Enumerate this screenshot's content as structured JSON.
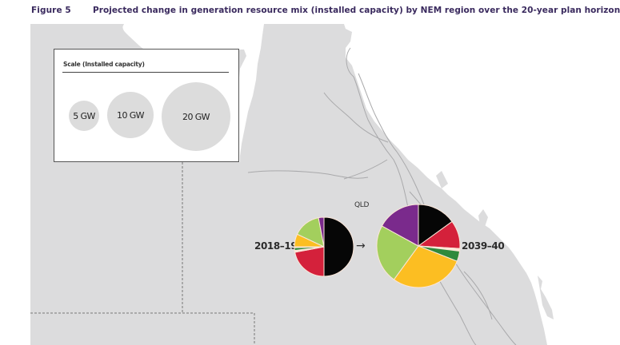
{
  "figure": {
    "number": "Figure 5",
    "title": "Projected change in generation resource mix (installed capacity) by NEM region over the 20-year plan horizon"
  },
  "scale_legend": {
    "title": "Scale (Installed capacity)",
    "circles": [
      {
        "label": "5 GW",
        "value_gw": 5
      },
      {
        "label": "10 GW",
        "value_gw": 10
      },
      {
        "label": "20 GW",
        "value_gw": 20
      }
    ]
  },
  "region": {
    "name": "QLD",
    "from_label": "2018–19",
    "to_label": "2039–40",
    "arrow": "→"
  },
  "colors": {
    "map_land": "#dcdcdd",
    "map_sea": "#ffffff",
    "black": "#060606",
    "red": "#d4213b",
    "dark_green": "#2f8a3c",
    "yellow": "#fcbe22",
    "light_green": "#a3cf5d",
    "purple": "#7a2a8c",
    "separator": "#fbe6d8"
  },
  "chart_data": [
    {
      "type": "pie",
      "title": "QLD 2018–19",
      "label": "2018–19",
      "slices": [
        {
          "color": "black",
          "share_pct": 50
        },
        {
          "color": "red",
          "share_pct": 22
        },
        {
          "color": "separator",
          "share_pct": 1
        },
        {
          "color": "dark_green",
          "share_pct": 1.5
        },
        {
          "color": "separator",
          "share_pct": 0.5
        },
        {
          "color": "yellow",
          "share_pct": 7
        },
        {
          "color": "light_green",
          "share_pct": 15
        },
        {
          "color": "purple",
          "share_pct": 3
        }
      ],
      "relative_size": "small"
    },
    {
      "type": "pie",
      "title": "QLD 2039–40",
      "label": "2039–40",
      "slices": [
        {
          "color": "black",
          "share_pct": 15
        },
        {
          "color": "red",
          "share_pct": 11
        },
        {
          "color": "separator",
          "share_pct": 1
        },
        {
          "color": "dark_green",
          "share_pct": 4
        },
        {
          "color": "yellow",
          "share_pct": 29
        },
        {
          "color": "light_green",
          "share_pct": 23
        },
        {
          "color": "purple",
          "share_pct": 17
        }
      ],
      "relative_size": "large"
    }
  ]
}
